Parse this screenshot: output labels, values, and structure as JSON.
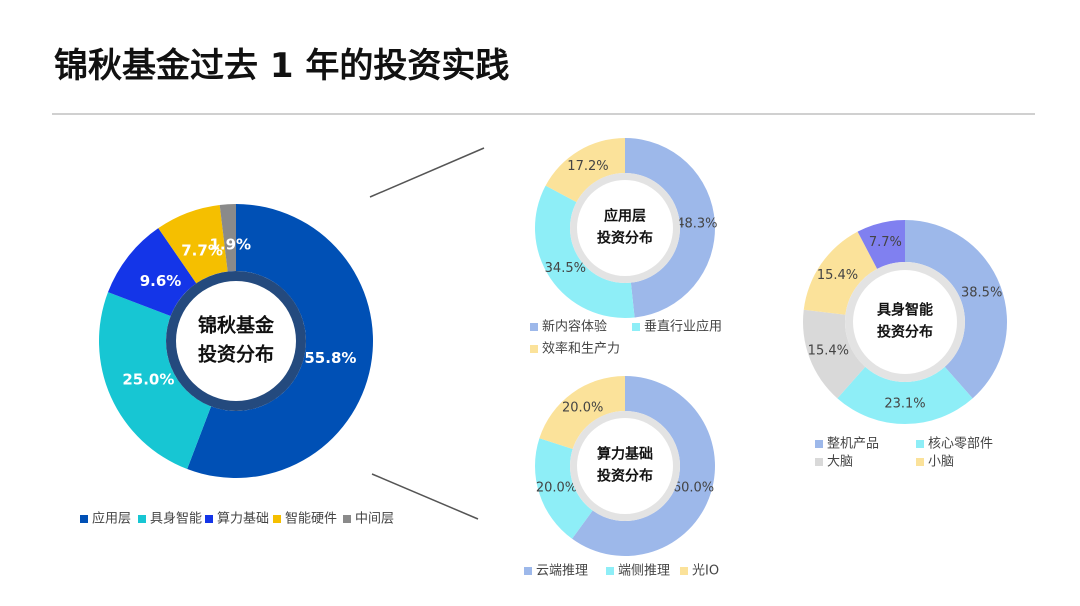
{
  "title": "锦秋基金过去 1 年的投资实践",
  "chart_data": [
    {
      "type": "donut",
      "title": "锦秋基金\n投资分布",
      "categories": [
        "应用层",
        "具身智能",
        "算力基础",
        "智能硬件",
        "中间层"
      ],
      "values": [
        55.8,
        25.0,
        9.6,
        7.7,
        1.9
      ],
      "value_labels": [
        "55.8%",
        "25.0%",
        "9.6%",
        "7.7%",
        "1.9%"
      ],
      "colors": [
        "#0050b5",
        "#17c6d3",
        "#1435e8",
        "#f5bf00",
        "#8a8a8a"
      ]
    },
    {
      "type": "donut",
      "title": "应用层\n投资分布",
      "categories": [
        "新内容体验",
        "垂直行业应用",
        "效率和生产力"
      ],
      "values": [
        48.3,
        34.5,
        17.2
      ],
      "value_labels": [
        "48.3%",
        "34.5%",
        "17.2%"
      ],
      "colors": [
        "#9db8ea",
        "#8eeef7",
        "#fbe29a"
      ]
    },
    {
      "type": "donut",
      "title": "算力基础\n投资分布",
      "categories": [
        "云端推理",
        "端侧推理",
        "光IO"
      ],
      "values": [
        60.0,
        20.0,
        20.0
      ],
      "value_labels": [
        "60.0%",
        "20.0%",
        "20.0%"
      ],
      "colors": [
        "#9db8ea",
        "#8eeef7",
        "#fbe29a"
      ]
    },
    {
      "type": "donut",
      "title": "具身智能\n投资分布",
      "categories": [
        "整机产品",
        "核心零部件",
        "大脑",
        "小脑",
        null
      ],
      "values": [
        38.5,
        23.1,
        15.4,
        15.4,
        7.7
      ],
      "value_labels": [
        "38.5%",
        "23.1%",
        "15.4%",
        "15.4%",
        "7.7%"
      ],
      "colors": [
        "#9db8ea",
        "#8eeef7",
        "#d9d9d9",
        "#fbe29a",
        "#8080f0"
      ]
    }
  ]
}
